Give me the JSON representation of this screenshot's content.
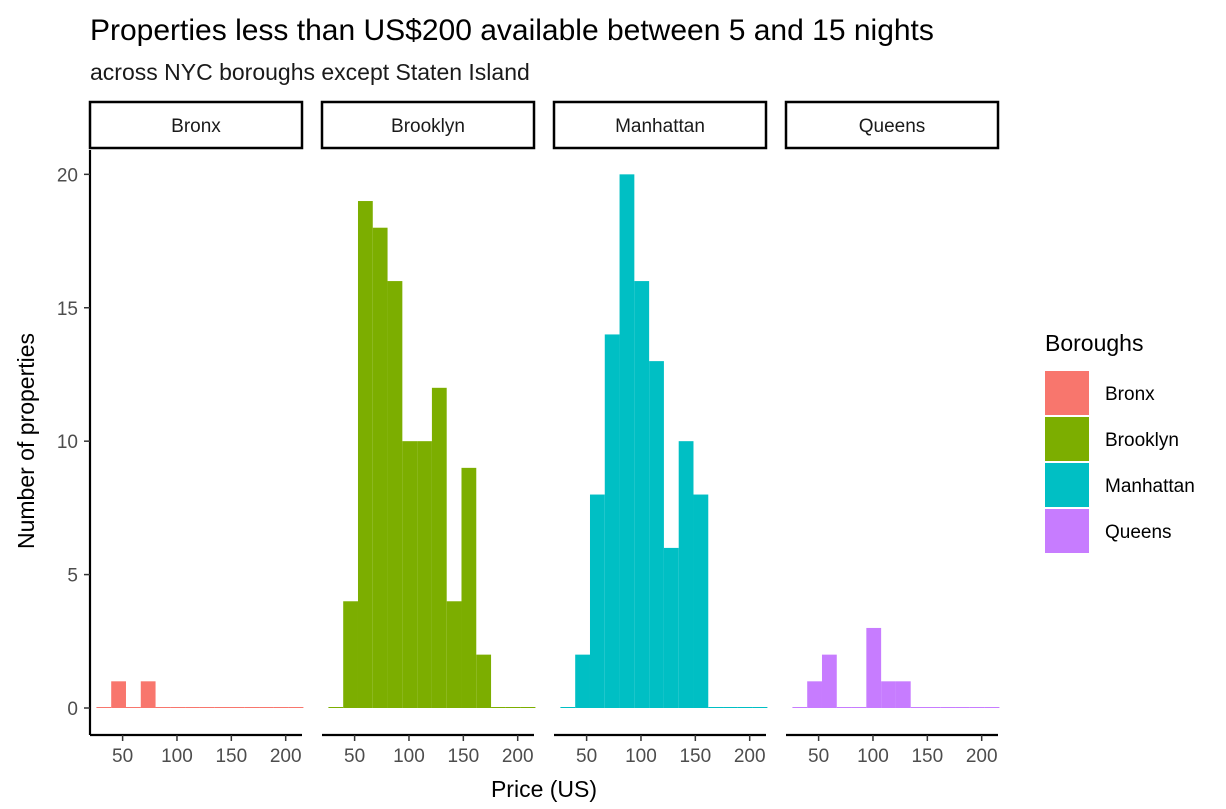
{
  "chart_data": {
    "type": "bar",
    "title": "Properties less than US$200 available between 5 and 15 nights",
    "subtitle": "across NYC boroughs except Staten Island",
    "xlabel": "Price (US)",
    "ylabel": "Number of properties",
    "xlim": [
      20,
      215
    ],
    "ylim": [
      0,
      20.8
    ],
    "x_ticks": [
      50,
      100,
      150,
      200
    ],
    "y_ticks": [
      0,
      5,
      10,
      15,
      20
    ],
    "grid": false,
    "legend_position": "right",
    "legend_title": "Boroughs",
    "bin_width": 13.6,
    "bin_centers": [
      32.7,
      46.3,
      59.9,
      73.5,
      87.1,
      100.7,
      114.3,
      127.9,
      141.5,
      155.1,
      168.7,
      182.3,
      195.9,
      209.5
    ],
    "series": [
      {
        "name": "Bronx",
        "color": "#F8766D",
        "values": [
          0,
          1,
          0,
          1,
          0,
          0,
          0,
          0,
          0,
          0,
          0,
          0,
          0,
          0
        ]
      },
      {
        "name": "Brooklyn",
        "color": "#7CAE00",
        "values": [
          0,
          4,
          19,
          18,
          16,
          10,
          10,
          12,
          4,
          9,
          2,
          0,
          0,
          0
        ]
      },
      {
        "name": "Manhattan",
        "color": "#00BFC4",
        "values": [
          0,
          2,
          8,
          14,
          20,
          16,
          13,
          6,
          10,
          8,
          0,
          0,
          0,
          0
        ]
      },
      {
        "name": "Queens",
        "color": "#C77CFF",
        "values": [
          0,
          1,
          2,
          0,
          0,
          3,
          1,
          1,
          0,
          0,
          0,
          0,
          0,
          0
        ]
      }
    ]
  }
}
